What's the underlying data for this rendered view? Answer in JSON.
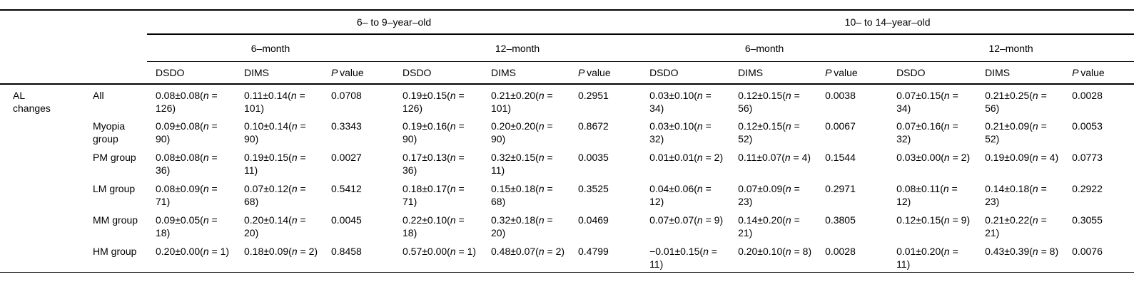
{
  "table": {
    "age_groups": [
      "6– to 9–year–old",
      "10– to 14–year–old"
    ],
    "periods": [
      "6–month",
      "12–month",
      "6–month",
      "12–month"
    ],
    "measures": [
      "DSDO",
      "DIMS",
      "P value",
      "DSDO",
      "DIMS",
      "P value",
      "DSDO",
      "DIMS",
      "P value",
      "DSDO",
      "DIMS",
      "P value"
    ],
    "rows": [
      {
        "section": "AL changes",
        "group": "All",
        "cells": [
          "0.08±0.08(n = 126)",
          "0.11±0.14(n = 101)",
          "0.0708",
          "0.19±0.15(n = 126)",
          "0.21±0.20(n = 101)",
          "0.2951",
          "0.03±0.10(n = 34)",
          "0.12±0.15(n = 56)",
          "0.0038",
          "0.07±0.15(n = 34)",
          "0.21±0.25(n = 56)",
          "0.0028"
        ]
      },
      {
        "section": "",
        "group": "Myopia group",
        "cells": [
          "0.09±0.08(n = 90)",
          "0.10±0.14(n = 90)",
          "0.3343",
          "0.19±0.16(n = 90)",
          "0.20±0.20(n = 90)",
          "0.8672",
          "0.03±0.10(n = 32)",
          "0.12±0.15(n = 52)",
          "0.0067",
          "0.07±0.16(n = 32)",
          "0.21±0.09(n = 52)",
          "0.0053"
        ]
      },
      {
        "section": "",
        "group": "PM group",
        "cells": [
          "0.08±0.08(n = 36)",
          "0.19±0.15(n = 11)",
          "0.0027",
          "0.17±0.13(n = 36)",
          "0.32±0.15(n = 11)",
          "0.0035",
          "0.01±0.01(n = 2)",
          "0.11±0.07(n = 4)",
          "0.1544",
          "0.03±0.00(n = 2)",
          "0.19±0.09(n = 4)",
          "0.0773"
        ]
      },
      {
        "section": "",
        "group": "LM group",
        "cells": [
          "0.08±0.09(n = 71)",
          "0.07±0.12(n = 68)",
          "0.5412",
          "0.18±0.17(n = 71)",
          "0.15±0.18(n = 68)",
          "0.3525",
          "0.04±0.06(n = 12)",
          "0.07±0.09(n = 23)",
          "0.2971",
          "0.08±0.11(n = 12)",
          "0.14±0.18(n = 23)",
          "0.2922"
        ]
      },
      {
        "section": "",
        "group": "MM group",
        "cells": [
          "0.09±0.05(n = 18)",
          "0.20±0.14(n = 20)",
          "0.0045",
          "0.22±0.10(n = 18)",
          "0.32±0.18(n = 20)",
          "0.0469",
          "0.07±0.07(n = 9)",
          "0.14±0.20(n = 21)",
          "0.3805",
          "0.12±0.15(n = 9)",
          "0.21±0.22(n = 21)",
          "0.3055"
        ]
      },
      {
        "section": "",
        "group": "HM group",
        "cells": [
          "0.20±0.00(n = 1)",
          "0.18±0.09(n = 2)",
          "0.8458",
          "0.57±0.00(n = 1)",
          "0.48±0.07(n = 2)",
          "0.4799",
          "−0.01±0.15(n = 11)",
          "0.20±0.10(n = 8)",
          "0.0028",
          "0.01±0.20(n = 11)",
          "0.43±0.39(n = 8)",
          "0.0076"
        ]
      }
    ]
  }
}
